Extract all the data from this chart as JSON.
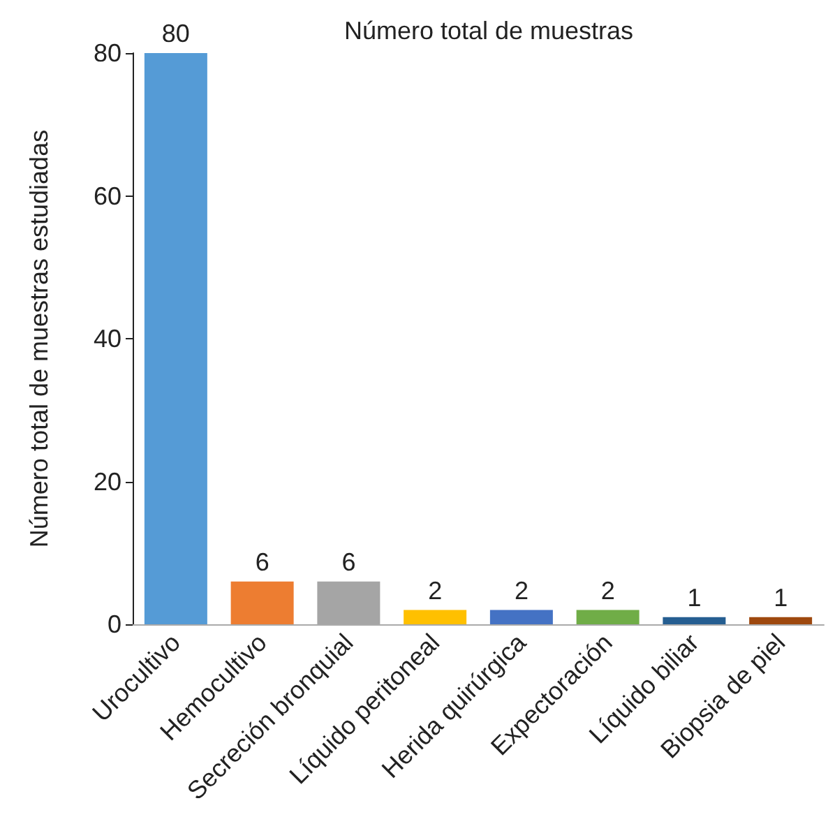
{
  "chart_data": {
    "type": "bar",
    "title": "Número total de muestras",
    "ylabel": "Número total de muestras estudiadas",
    "categories": [
      "Urocultivo",
      "Hemocultivo",
      "Secreción bronquial",
      "Líquido peritoneal",
      "Herida quirúrgica",
      "Expectoración",
      "Líquido biliar",
      "Biopsia de piel"
    ],
    "values": [
      80,
      6,
      6,
      2,
      2,
      2,
      1,
      1
    ],
    "colors": [
      "#559bd6",
      "#ed7d31",
      "#a5a5a5",
      "#ffc000",
      "#4472c4",
      "#70ad47",
      "#255e91",
      "#9e480e"
    ],
    "ylim": [
      0,
      80
    ],
    "yticks": [
      0,
      20,
      40,
      60,
      80
    ],
    "grid": false,
    "data_labels": true
  }
}
